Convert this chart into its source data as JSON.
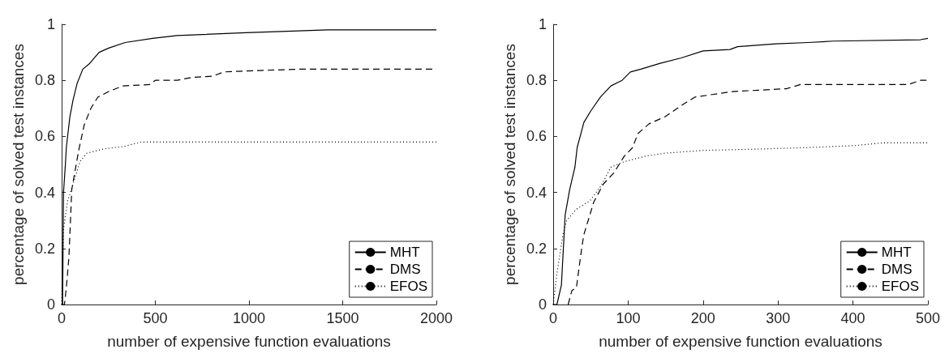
{
  "chart_data": [
    {
      "type": "line",
      "xlabel": "number of expensive function evaluations",
      "ylabel": "percentage of solved test instances",
      "xlim": [
        0,
        2000
      ],
      "xticks": [
        0,
        500,
        1000,
        1500,
        2000
      ],
      "ylim": [
        0,
        1
      ],
      "yticks": [
        0,
        0.2,
        0.4,
        0.6,
        0.8,
        1
      ],
      "legend": "bottom right",
      "grid": false,
      "marker": "none",
      "series": [
        {
          "name": "MHT",
          "color": "#000000",
          "line_style": "solid",
          "x": [
            0,
            5,
            10,
            20,
            25,
            44,
            61,
            83,
            113,
            149,
            200,
            251,
            339,
            485,
            617,
            982,
            1421,
            2000
          ],
          "values": [
            0,
            0,
            0.4,
            0.5,
            0.56,
            0.67,
            0.73,
            0.79,
            0.84,
            0.86,
            0.9,
            0.915,
            0.935,
            0.95,
            0.96,
            0.97,
            0.98,
            0.98
          ]
        },
        {
          "name": "DMS",
          "color": "#000000",
          "line_style": "dashed",
          "x": [
            0,
            15,
            25,
            39,
            54,
            91,
            120,
            156,
            193,
            251,
            325,
            471,
            500,
            617,
            690,
            807,
            865,
            1055,
            1275,
            2000
          ],
          "values": [
            0,
            0,
            0.06,
            0.17,
            0.41,
            0.55,
            0.64,
            0.7,
            0.74,
            0.76,
            0.78,
            0.785,
            0.8,
            0.8,
            0.81,
            0.815,
            0.83,
            0.835,
            0.84,
            0.84
          ]
        },
        {
          "name": "EFOS",
          "color": "#000000",
          "line_style": "dotted",
          "x": [
            0,
            5,
            10,
            32,
            61,
            98,
            135,
            222,
            339,
            427,
            2000
          ],
          "values": [
            0,
            0.15,
            0.27,
            0.37,
            0.43,
            0.51,
            0.54,
            0.555,
            0.565,
            0.58,
            0.58
          ]
        }
      ]
    },
    {
      "type": "line",
      "xlabel": "number of expensive function evaluations",
      "ylabel": "percentage of solved test instances",
      "xlim": [
        0,
        500
      ],
      "xticks": [
        0,
        100,
        200,
        300,
        400,
        500
      ],
      "ylim": [
        0,
        1
      ],
      "yticks": [
        0,
        0.2,
        0.4,
        0.6,
        0.8,
        1
      ],
      "legend": "bottom right",
      "grid": false,
      "marker": "none",
      "series": [
        {
          "name": "MHT",
          "color": "#000000",
          "line_style": "solid",
          "x": [
            0,
            5,
            11,
            16,
            22,
            29,
            32,
            41,
            50,
            63,
            77,
            92,
            103,
            117,
            142,
            171,
            200,
            236,
            246,
            297,
            340,
            374,
            490,
            500
          ],
          "values": [
            0,
            0,
            0.07,
            0.32,
            0.41,
            0.49,
            0.56,
            0.65,
            0.69,
            0.74,
            0.78,
            0.8,
            0.83,
            0.84,
            0.86,
            0.88,
            0.905,
            0.91,
            0.92,
            0.93,
            0.935,
            0.94,
            0.945,
            0.95
          ]
        },
        {
          "name": "DMS",
          "color": "#000000",
          "line_style": "dashed",
          "x": [
            20,
            25,
            31,
            38,
            41,
            49,
            54,
            67,
            81,
            95,
            106,
            113,
            128,
            149,
            171,
            189,
            214,
            239,
            311,
            330,
            474,
            490,
            500
          ],
          "values": [
            0,
            0.05,
            0.06,
            0.2,
            0.25,
            0.32,
            0.365,
            0.43,
            0.47,
            0.53,
            0.56,
            0.61,
            0.645,
            0.67,
            0.71,
            0.74,
            0.75,
            0.76,
            0.77,
            0.785,
            0.785,
            0.8,
            0.8
          ]
        },
        {
          "name": "EFOS",
          "color": "#000000",
          "line_style": "dotted",
          "x": [
            0,
            5,
            13,
            18,
            31,
            49,
            63,
            77,
            95,
            124,
            149,
            200,
            250,
            340,
            402,
            440,
            500
          ],
          "values": [
            0,
            0.11,
            0.25,
            0.3,
            0.34,
            0.37,
            0.42,
            0.49,
            0.51,
            0.53,
            0.54,
            0.55,
            0.553,
            0.56,
            0.567,
            0.577,
            0.577
          ]
        }
      ]
    }
  ]
}
